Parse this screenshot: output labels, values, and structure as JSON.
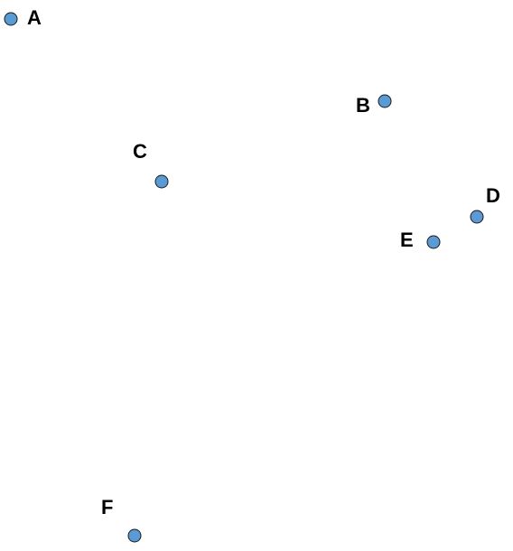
{
  "points": [
    {
      "label": "A"
    },
    {
      "label": "B"
    },
    {
      "label": "C"
    },
    {
      "label": "D"
    },
    {
      "label": "E"
    },
    {
      "label": "F"
    }
  ],
  "colors": {
    "marker_fill": "#5b9bd5",
    "marker_stroke": "#1a1a1a",
    "label_color": "#000000",
    "background": "#ffffff"
  }
}
